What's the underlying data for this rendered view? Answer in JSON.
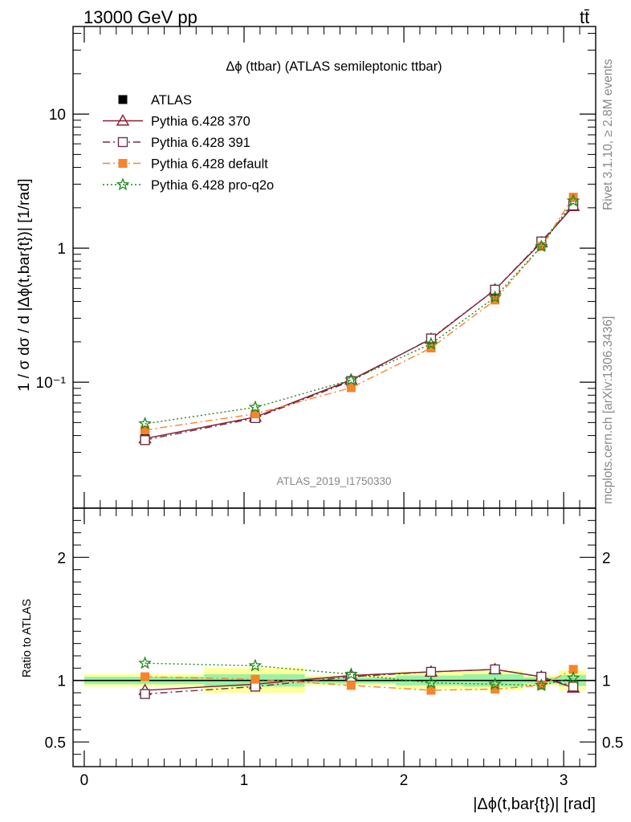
{
  "header": {
    "left": "13000 GeV pp",
    "right": "tt̄"
  },
  "side_labels": {
    "rivet": "Rivet 3.1.10, ≥ 2.8M events",
    "mcplots": "mcplots.cern.ch [arXiv:1306.3436]"
  },
  "watermark": "ATLAS_2019_I1750330",
  "chart_data": [
    {
      "type": "line",
      "title": "Δϕ (ttbar) (ATLAS semileptonic ttbar)",
      "xlabel": "|Δϕ(t,bar{t})| [rad]",
      "ylabel": "1 / σ dσ / d |Δϕ(t,bar{t})| [1/rad]",
      "yscale": "log",
      "xlim": [
        -0.07,
        3.2
      ],
      "ylim": [
        0.0115,
        45
      ],
      "y_ticks": [
        {
          "value": 0.1,
          "label": "10⁻¹"
        },
        {
          "value": 1,
          "label": "1"
        },
        {
          "value": 10,
          "label": "10"
        }
      ],
      "legend_position": "top-left",
      "x": [
        0.38,
        1.07,
        1.67,
        2.17,
        2.57,
        2.86,
        3.06
      ],
      "series": [
        {
          "name": "ATLAS",
          "color": "#000000",
          "marker": "filled-square",
          "y": [
            0.042,
            0.057,
            0.1,
            0.2,
            0.45,
            1.08,
            2.2
          ]
        },
        {
          "name": "Pythia 6.428 370",
          "color": "#8b1a2e",
          "marker": "open-triangle",
          "line": "solid",
          "y": [
            0.038,
            0.055,
            0.104,
            0.21,
            0.49,
            1.1,
            2.05
          ]
        },
        {
          "name": "Pythia 6.428 391",
          "color": "#6b3048",
          "marker": "open-square",
          "line": "dash-dot",
          "y": [
            0.037,
            0.054,
            0.102,
            0.212,
            0.49,
            1.12,
            2.08
          ]
        },
        {
          "name": "Pythia 6.428 default",
          "color": "#f5842c",
          "marker": "filled-square",
          "line": "dash-dot",
          "y": [
            0.044,
            0.058,
            0.091,
            0.18,
            0.41,
            1.03,
            2.4
          ]
        },
        {
          "name": "Pythia 6.428 pro-q2o",
          "color": "#1a8a1a",
          "marker": "star",
          "line": "dotted",
          "y": [
            0.049,
            0.065,
            0.104,
            0.193,
            0.43,
            1.03,
            2.25
          ]
        }
      ]
    },
    {
      "type": "line",
      "ylabel": "Ratio to ATLAS",
      "xlabel": "|Δϕ(t,bar{t})| [rad]",
      "x_ticks": [
        0,
        1,
        2,
        3
      ],
      "y_ticks": [
        0.5,
        1,
        2
      ],
      "ylim": [
        0.3,
        2.4
      ],
      "reference": 1,
      "uncertainty_bins": [
        {
          "x": [
            0.0,
            0.75
          ],
          "stat": 0.03,
          "total": 0.05
        },
        {
          "x": [
            0.75,
            1.38
          ],
          "stat": 0.05,
          "total": 0.1
        },
        {
          "x": [
            1.38,
            1.95
          ],
          "stat": 0.025,
          "total": 0.04
        },
        {
          "x": [
            1.95,
            2.37
          ],
          "stat": 0.04,
          "total": 0.07
        },
        {
          "x": [
            2.37,
            2.75
          ],
          "stat": 0.05,
          "total": 0.08
        },
        {
          "x": [
            2.75,
            2.97
          ],
          "stat": 0.025,
          "total": 0.04
        },
        {
          "x": [
            2.97,
            3.14
          ],
          "stat": 0.045,
          "total": 0.08
        }
      ],
      "x": [
        0.38,
        1.07,
        1.67,
        2.17,
        2.57,
        2.86,
        3.06
      ],
      "series": [
        {
          "name": "Pythia 6.428 370",
          "y": [
            0.92,
            0.97,
            1.04,
            1.07,
            1.09,
            1.03,
            0.94
          ]
        },
        {
          "name": "Pythia 6.428 391",
          "y": [
            0.89,
            0.95,
            1.03,
            1.07,
            1.09,
            1.03,
            0.95
          ]
        },
        {
          "name": "Pythia 6.428 default",
          "y": [
            1.03,
            1.01,
            0.96,
            0.92,
            0.93,
            0.96,
            1.09
          ]
        },
        {
          "name": "Pythia 6.428 pro-q2o",
          "y": [
            1.14,
            1.12,
            1.05,
            0.98,
            0.97,
            0.96,
            1.02
          ]
        }
      ]
    }
  ]
}
